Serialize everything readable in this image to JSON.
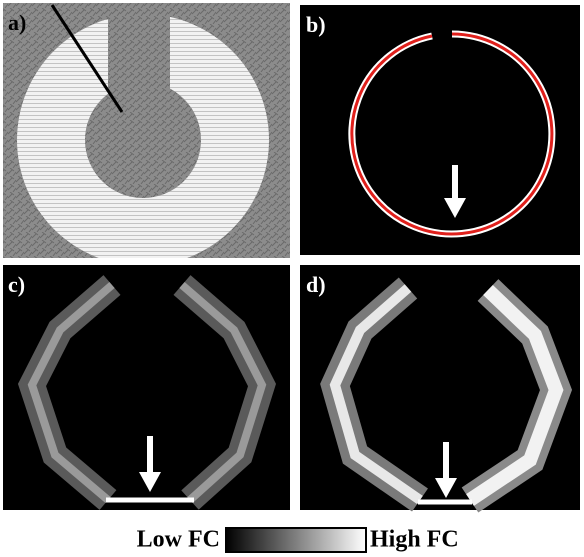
{
  "panels": [
    {
      "label": "a)"
    },
    {
      "label": "b)"
    },
    {
      "label": "c)"
    },
    {
      "label": "d)"
    }
  ],
  "colorbar": {
    "low_label": "Low FC",
    "high_label": "High FC"
  }
}
